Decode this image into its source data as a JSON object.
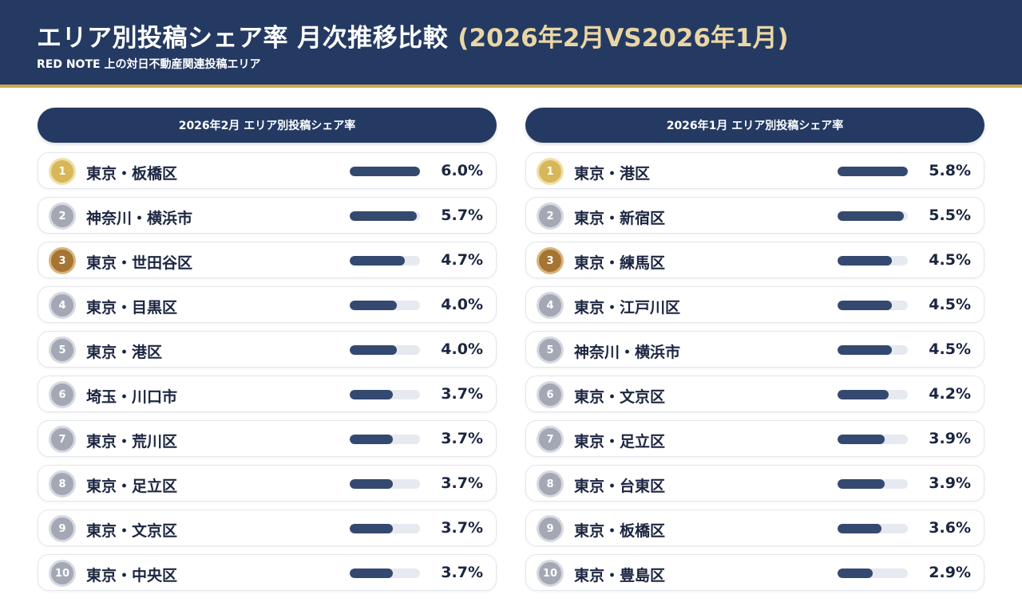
{
  "header": {
    "title": "エリア別投稿シェア率 月次推移比較",
    "title_period": "(2026年2月VS2026年1月)",
    "subtitle": "RED NOTE 上の対日不動産関連投稿エリア"
  },
  "colors": {
    "header_bg": "#243a63",
    "accent_gold": "#c9a94c",
    "bar": "#34496f",
    "rank1": "#d7b75a",
    "rank2": "#a3a8b4",
    "rank3": "#a67433"
  },
  "chart_data": [
    {
      "type": "bar",
      "title": "2026年2月 エリア別投稿シェア率",
      "unit": "%",
      "ylim": [
        0,
        6.0
      ],
      "items": [
        {
          "rank": "1",
          "name": "東京・板橋区",
          "value": 6.0,
          "label": "6.0%"
        },
        {
          "rank": "2",
          "name": "神奈川・横浜市",
          "value": 5.7,
          "label": "5.7%"
        },
        {
          "rank": "3",
          "name": "東京・世田谷区",
          "value": 4.7,
          "label": "4.7%"
        },
        {
          "rank": "4",
          "name": "東京・目黒区",
          "value": 4.0,
          "label": "4.0%"
        },
        {
          "rank": "5",
          "name": "東京・港区",
          "value": 4.0,
          "label": "4.0%"
        },
        {
          "rank": "6",
          "name": "埼玉・川口市",
          "value": 3.7,
          "label": "3.7%"
        },
        {
          "rank": "7",
          "name": "東京・荒川区",
          "value": 3.7,
          "label": "3.7%"
        },
        {
          "rank": "8",
          "name": "東京・足立区",
          "value": 3.7,
          "label": "3.7%"
        },
        {
          "rank": "9",
          "name": "東京・文京区",
          "value": 3.7,
          "label": "3.7%"
        },
        {
          "rank": "10",
          "name": "東京・中央区",
          "value": 3.7,
          "label": "3.7%"
        }
      ]
    },
    {
      "type": "bar",
      "title": "2026年1月 エリア別投稿シェア率",
      "unit": "%",
      "ylim": [
        0,
        5.8
      ],
      "items": [
        {
          "rank": "1",
          "name": "東京・港区",
          "value": 5.8,
          "label": "5.8%"
        },
        {
          "rank": "2",
          "name": "東京・新宿区",
          "value": 5.5,
          "label": "5.5%"
        },
        {
          "rank": "3",
          "name": "東京・練馬区",
          "value": 4.5,
          "label": "4.5%"
        },
        {
          "rank": "4",
          "name": "東京・江戸川区",
          "value": 4.5,
          "label": "4.5%"
        },
        {
          "rank": "5",
          "name": "神奈川・横浜市",
          "value": 4.5,
          "label": "4.5%"
        },
        {
          "rank": "6",
          "name": "東京・文京区",
          "value": 4.2,
          "label": "4.2%"
        },
        {
          "rank": "7",
          "name": "東京・足立区",
          "value": 3.9,
          "label": "3.9%"
        },
        {
          "rank": "8",
          "name": "東京・台東区",
          "value": 3.9,
          "label": "3.9%"
        },
        {
          "rank": "9",
          "name": "東京・板橋区",
          "value": 3.6,
          "label": "3.6%"
        },
        {
          "rank": "10",
          "name": "東京・豊島区",
          "value": 2.9,
          "label": "2.9%"
        }
      ]
    }
  ]
}
